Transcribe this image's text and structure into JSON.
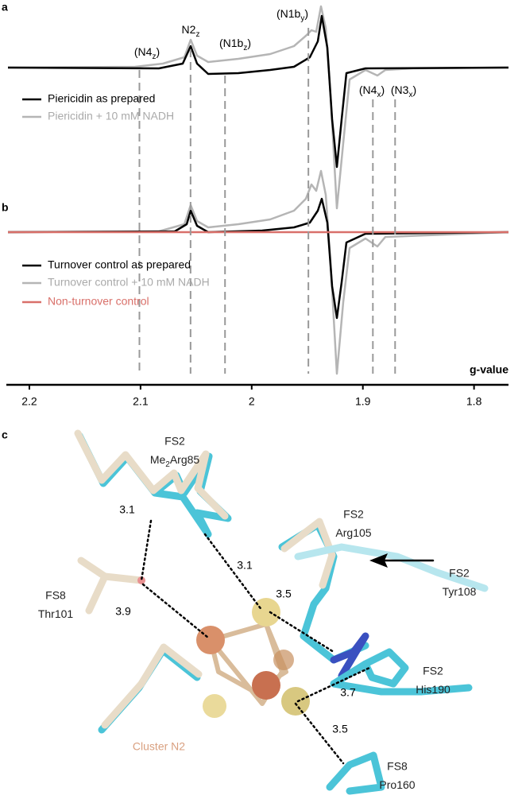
{
  "panels": {
    "a": {
      "letter": "a",
      "legend": [
        "Piericidin as prepared",
        "Piericidin + 10 mM NADH"
      ],
      "peaks": [
        {
          "pre": "(N4",
          "sub": "z",
          "post": ")"
        },
        {
          "pre": "N2",
          "sub": "z",
          "post": ""
        },
        {
          "pre": "(N1b",
          "sub": "z",
          "post": ")"
        },
        {
          "pre": "(N1b",
          "sub": "y",
          "post": ")"
        },
        {
          "pre": "(N4",
          "sub": "x",
          "post": ")"
        },
        {
          "pre": "(N3",
          "sub": "x",
          "post": ")"
        }
      ]
    },
    "b": {
      "letter": "b",
      "legend": [
        "Turnover control as prepared",
        "Turnover control + 10 mM NADH",
        "Non-turnover control"
      ]
    },
    "c": {
      "letter": "c",
      "labels": [
        [
          "FS2",
          "Me",
          "2",
          "Arg85"
        ],
        [
          "FS2",
          "Arg105"
        ],
        [
          "FS2",
          "Tyr108"
        ],
        [
          "FS8",
          "Thr101"
        ],
        [
          "FS2",
          "His190"
        ],
        [
          "FS8",
          "Pro160"
        ],
        [
          "Cluster N2"
        ]
      ],
      "distances": [
        "3.1",
        "3.1",
        "3.9",
        "3.5",
        "3.7",
        "3.5"
      ]
    }
  },
  "axis": {
    "title": "g-value",
    "xlim": [
      2.2207,
      1.769
    ],
    "xticks": [
      2.2,
      2.1,
      2,
      1.9,
      1.8
    ],
    "markers": [
      2.101,
      2.055,
      2.024,
      1.949,
      1.891,
      1.871
    ]
  }
}
